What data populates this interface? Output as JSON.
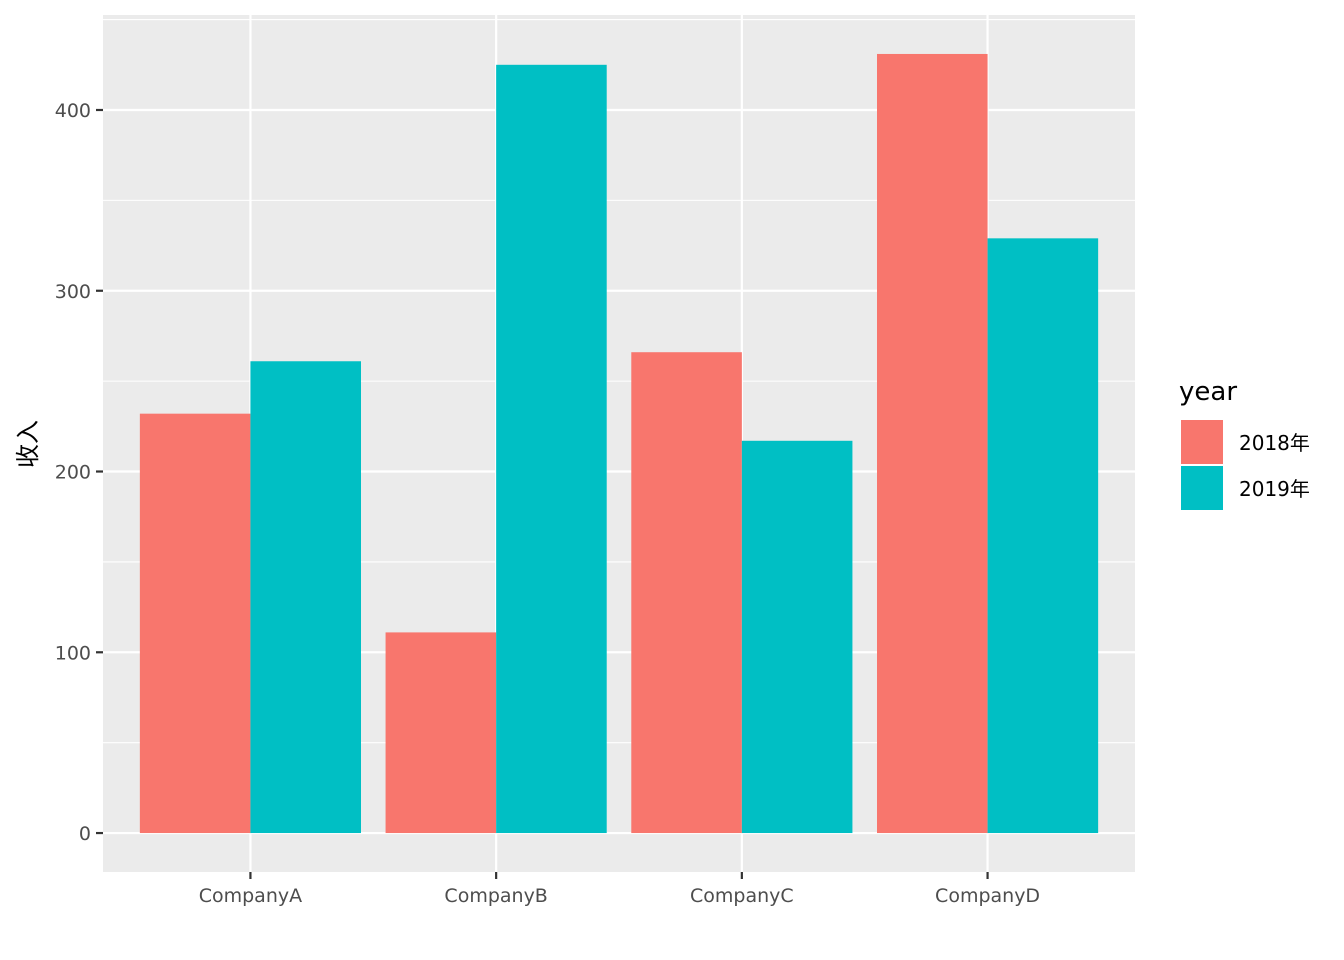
{
  "chart_data": {
    "type": "bar",
    "categories": [
      "CompanyA",
      "CompanyB",
      "CompanyC",
      "CompanyD"
    ],
    "series": [
      {
        "name": "2018年",
        "values": [
          232,
          111,
          266,
          431
        ],
        "color": "#F8766D"
      },
      {
        "name": "2019年",
        "values": [
          261,
          425,
          217,
          329
        ],
        "color": "#00BFC4"
      }
    ],
    "xlabel": "",
    "ylabel": "收入",
    "ylim": [
      -21.55,
      452.55
    ],
    "yticks": [
      0,
      100,
      200,
      300,
      400
    ],
    "ytick_labels": [
      "0",
      "100",
      "200",
      "300",
      "400"
    ],
    "grid": true,
    "legend": {
      "title": "year",
      "position": "right"
    },
    "panel_background": "#EBEBEB",
    "grid_color": "#FFFFFF"
  }
}
